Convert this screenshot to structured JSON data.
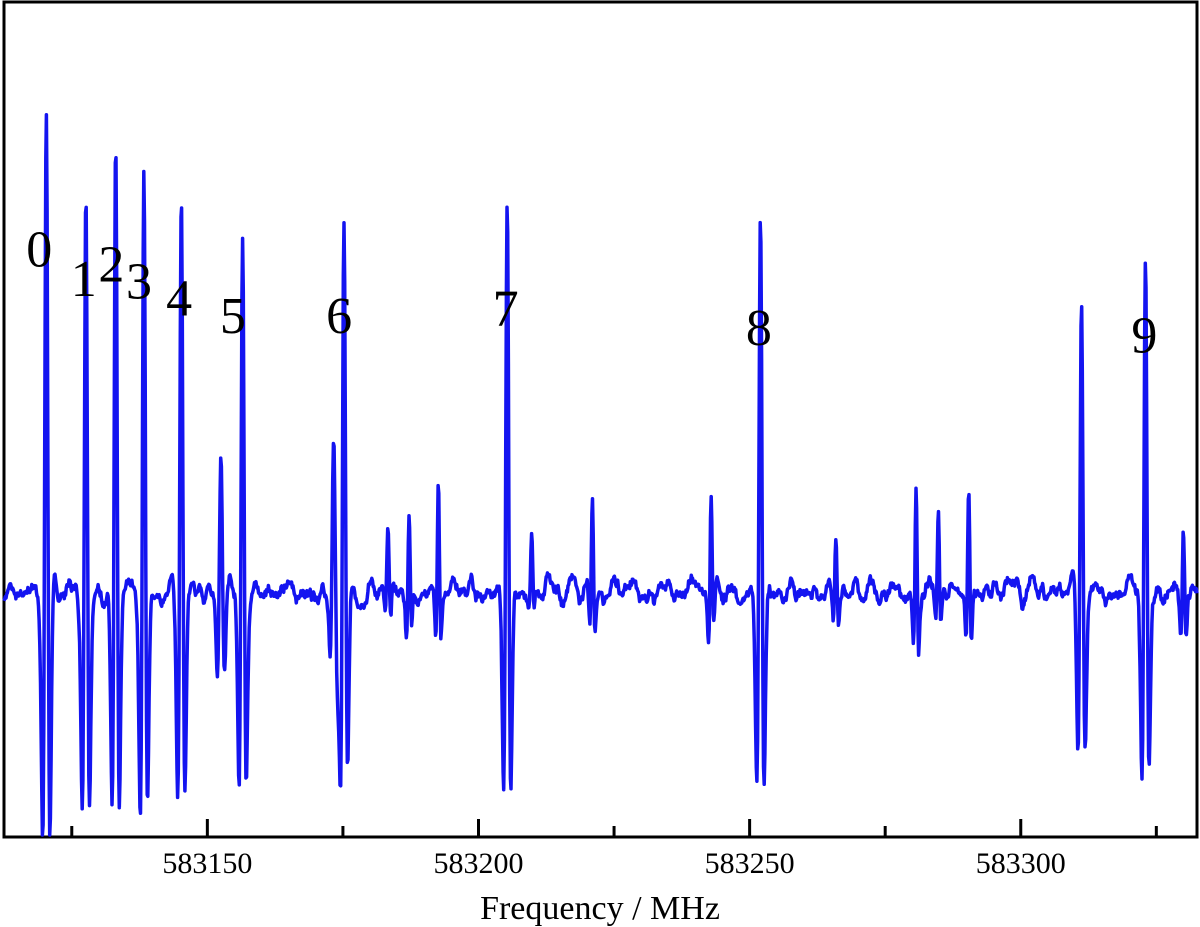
{
  "chart_data": {
    "type": "line",
    "title": "",
    "xlabel": "Frequency / MHz",
    "ylabel": "",
    "xlim": [
      583112.5,
      583332.5
    ],
    "ylim": [
      -1.0,
      1.0
    ],
    "major_ticks": [
      583150,
      583200,
      583250,
      583300
    ],
    "minor_ticks": [
      583125,
      583175,
      583225,
      583275,
      583325
    ],
    "tick_labels": [
      "583150",
      "583200",
      "583250",
      "583300"
    ],
    "grid": false,
    "legend": "none",
    "line_color": "#1414f0",
    "series": [
      {
        "peaks": [
          {
            "x": 583120.3,
            "amp": 1.95,
            "label": "0"
          },
          {
            "x": 583127.6,
            "amp": 1.67,
            "label": "1"
          },
          {
            "x": 583133.1,
            "amp": 1.78,
            "label": "2"
          },
          {
            "x": 583138.3,
            "amp": 1.72,
            "label": "3"
          },
          {
            "x": 583145.2,
            "amp": 1.62,
            "label": "4"
          },
          {
            "x": 583152.5,
            "amp": 0.62,
            "label": ""
          },
          {
            "x": 583156.5,
            "amp": 1.5,
            "label": "5"
          },
          {
            "x": 583173.3,
            "amp": 0.62,
            "label": ""
          },
          {
            "x": 583175.2,
            "amp": 1.5,
            "label": "6"
          },
          {
            "x": 583205.3,
            "amp": 1.58,
            "label": "7"
          },
          {
            "x": 583252.0,
            "amp": 1.49,
            "label": "8"
          },
          {
            "x": 583311.2,
            "amp": 1.22,
            "label": ""
          },
          {
            "x": 583323.0,
            "amp": 1.38,
            "label": "9"
          }
        ],
        "small_features": [
          {
            "x": 583183.3,
            "amp": 0.24
          },
          {
            "x": 583187.2,
            "amp": 0.33
          },
          {
            "x": 583192.6,
            "amp": 0.43
          },
          {
            "x": 583209.8,
            "amp": 0.2
          },
          {
            "x": 583221.0,
            "amp": 0.36
          },
          {
            "x": 583242.9,
            "amp": 0.38
          },
          {
            "x": 583265.9,
            "amp": 0.22
          },
          {
            "x": 583280.7,
            "amp": 0.42
          },
          {
            "x": 583284.8,
            "amp": 0.29
          },
          {
            "x": 583290.4,
            "amp": 0.4
          },
          {
            "x": 583330.0,
            "amp": 0.3
          }
        ]
      }
    ],
    "peak_label_positions": [
      {
        "label": "0",
        "x": 583119.0,
        "y": 1.32
      },
      {
        "label": "1",
        "x": 583127.2,
        "y": 1.2
      },
      {
        "label": "2",
        "x": 583132.3,
        "y": 1.26
      },
      {
        "label": "3",
        "x": 583137.4,
        "y": 1.19
      },
      {
        "label": "4",
        "x": 583144.8,
        "y": 1.12
      },
      {
        "label": "5",
        "x": 583154.7,
        "y": 1.05
      },
      {
        "label": "6",
        "x": 583174.3,
        "y": 1.05
      },
      {
        "label": "7",
        "x": 583205.0,
        "y": 1.08
      },
      {
        "label": "8",
        "x": 583251.7,
        "y": 1.0
      },
      {
        "label": "9",
        "x": 583322.8,
        "y": 0.97
      }
    ]
  }
}
